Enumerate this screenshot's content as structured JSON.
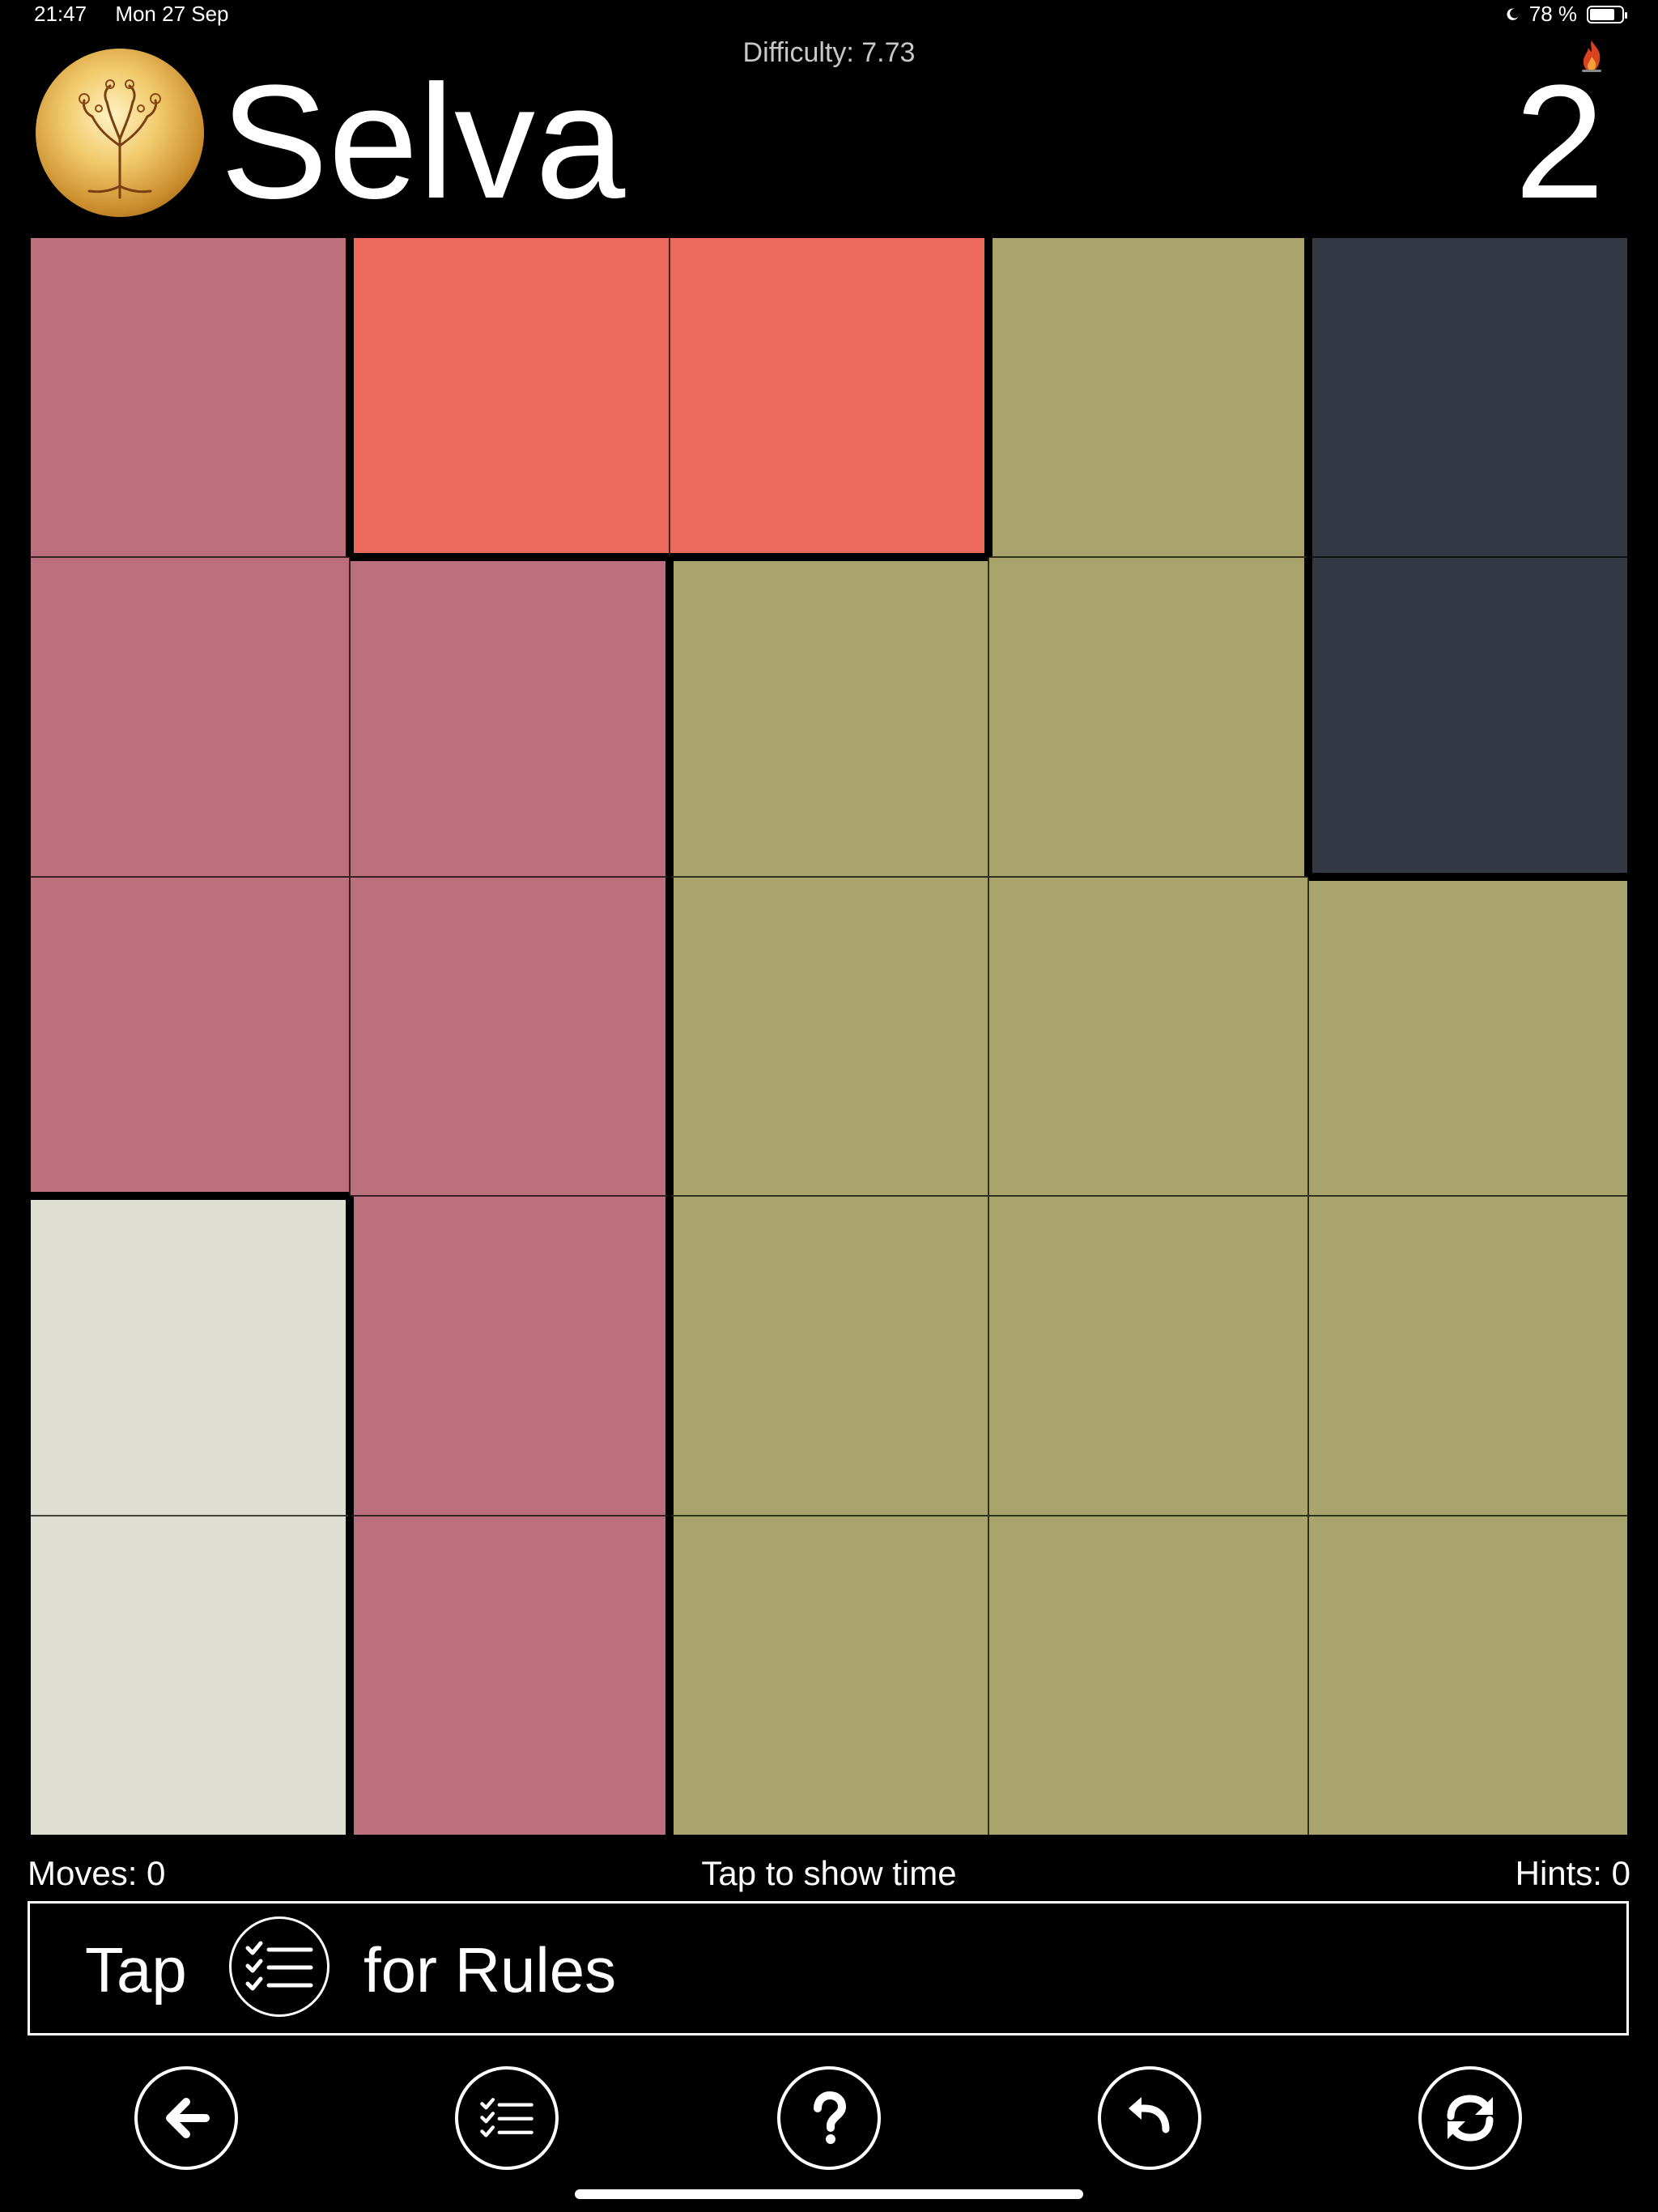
{
  "status_bar": {
    "time": "21:47",
    "date": "Mon 27 Sep",
    "battery_text": "78 %",
    "battery_level": 0.78
  },
  "header": {
    "difficulty": "Difficulty: 7.73",
    "title": "Selva",
    "level": "2",
    "logo_icon": "tree-of-life-logo",
    "flame_icon": "flame-icon"
  },
  "board": {
    "rows": 5,
    "cols": 5,
    "colors": {
      "rose": "#BC6F7C",
      "coral": "#EC6B5E",
      "olive": "#A9A46B",
      "slate": "#343844",
      "cream": "#DFDED2"
    },
    "cells": [
      [
        "rose",
        "coral",
        "coral",
        "olive",
        "slate"
      ],
      [
        "rose",
        "rose",
        "olive",
        "olive",
        "slate"
      ],
      [
        "rose",
        "rose",
        "olive",
        "olive",
        "olive"
      ],
      [
        "cream",
        "rose",
        "olive",
        "olive",
        "olive"
      ],
      [
        "cream",
        "rose",
        "olive",
        "olive",
        "olive"
      ]
    ]
  },
  "stats": {
    "moves": "Moves: 0",
    "time_hint": "Tap to show time",
    "hints": "Hints: 0"
  },
  "rules_banner": {
    "tap": "Tap",
    "for_rules": "for Rules",
    "icon": "rules-list-icon"
  },
  "toolbar": {
    "buttons": [
      {
        "name": "back-button",
        "icon": "arrow-left-icon"
      },
      {
        "name": "rules-button",
        "icon": "rules-list-icon"
      },
      {
        "name": "help-button",
        "icon": "question-icon"
      },
      {
        "name": "undo-button",
        "icon": "undo-icon"
      },
      {
        "name": "restart-button",
        "icon": "refresh-icon"
      }
    ]
  }
}
